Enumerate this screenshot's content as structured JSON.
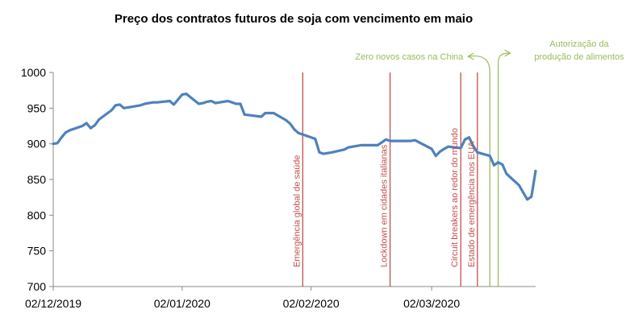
{
  "chart_data": {
    "type": "line",
    "title": "Preço dos contratos futuros de soja com vencimento em maio",
    "xlabel": "",
    "ylabel": "",
    "ylim": [
      700,
      1000
    ],
    "yticks": [
      700,
      750,
      800,
      850,
      900,
      950,
      1000
    ],
    "grid": false,
    "x_tick_labels": [
      "02/12/2019",
      "02/01/2020",
      "02/02/2020",
      "02/03/2020"
    ],
    "x_tick_dates": [
      "2019-12-02",
      "2020-01-02",
      "2020-02-02",
      "2020-03-02"
    ],
    "x_range": [
      "2019-12-02",
      "2020-03-27"
    ],
    "colors": {
      "series": "#4f81bd",
      "event": "#c0504d",
      "green": "#9bbb59",
      "axis": "#888888"
    },
    "series": [
      {
        "x": [
          "2019-12-02",
          "2019-12-03",
          "2019-12-04",
          "2019-12-05",
          "2019-12-06",
          "2019-12-09",
          "2019-12-10",
          "2019-12-11",
          "2019-12-12",
          "2019-12-13",
          "2019-12-16",
          "2019-12-17",
          "2019-12-18",
          "2019-12-19",
          "2019-12-20",
          "2019-12-23",
          "2019-12-24",
          "2019-12-26",
          "2019-12-27",
          "2019-12-30",
          "2019-12-31",
          "2020-01-02",
          "2020-01-03",
          "2020-01-06",
          "2020-01-07",
          "2020-01-08",
          "2020-01-09",
          "2020-01-10",
          "2020-01-13",
          "2020-01-14",
          "2020-01-15",
          "2020-01-16",
          "2020-01-17",
          "2020-01-21",
          "2020-01-22",
          "2020-01-23",
          "2020-01-24",
          "2020-01-27",
          "2020-01-28",
          "2020-01-29",
          "2020-01-30",
          "2020-01-31",
          "2020-02-03",
          "2020-02-04",
          "2020-02-05",
          "2020-02-06",
          "2020-02-07",
          "2020-02-10",
          "2020-02-11",
          "2020-02-12",
          "2020-02-13",
          "2020-02-14",
          "2020-02-18",
          "2020-02-19",
          "2020-02-20",
          "2020-02-21",
          "2020-02-24",
          "2020-02-25",
          "2020-02-26",
          "2020-02-27",
          "2020-02-28",
          "2020-03-02",
          "2020-03-03",
          "2020-03-04",
          "2020-03-05",
          "2020-03-06",
          "2020-03-09",
          "2020-03-10",
          "2020-03-11",
          "2020-03-12",
          "2020-03-13",
          "2020-03-16",
          "2020-03-17",
          "2020-03-18",
          "2020-03-19",
          "2020-03-20",
          "2020-03-23",
          "2020-03-24",
          "2020-03-25",
          "2020-03-26",
          "2020-03-27"
        ],
        "y": [
          900,
          901,
          909,
          916,
          919,
          925,
          929,
          922,
          926,
          934,
          947,
          954,
          955,
          950,
          951,
          954,
          956,
          958,
          958,
          960,
          955,
          969,
          970,
          956,
          957,
          959,
          960,
          957,
          960,
          958,
          956,
          956,
          941,
          938,
          943,
          943,
          943,
          933,
          928,
          920,
          915,
          913,
          907,
          888,
          886,
          887,
          888,
          892,
          895,
          896,
          897,
          898,
          898,
          902,
          906,
          904,
          904,
          904,
          904,
          905,
          902,
          893,
          883,
          889,
          893,
          896,
          894,
          906,
          909,
          897,
          888,
          883,
          870,
          874,
          871,
          858,
          842,
          832,
          822,
          826,
          862
        ]
      }
    ],
    "annotations": [
      {
        "date": "2020-01-31",
        "label": "Emergência global de saúde",
        "color": "red"
      },
      {
        "date": "2020-02-21",
        "label": "Lockdown em cidades italianas",
        "color": "red"
      },
      {
        "date": "2020-03-09",
        "label": "Circuit breakers ao redor do mundo",
        "color": "red"
      },
      {
        "date": "2020-03-13",
        "label": "Estado de emergência nos EUA",
        "color": "red"
      },
      {
        "date": "2020-03-16",
        "label": "Zero novos casos na China",
        "color": "green"
      },
      {
        "date": "2020-03-18",
        "label": "Autorização da produção de alimentos",
        "label_lines": [
          "Autorização da",
          "produção de alimentos"
        ],
        "color": "green"
      }
    ]
  }
}
